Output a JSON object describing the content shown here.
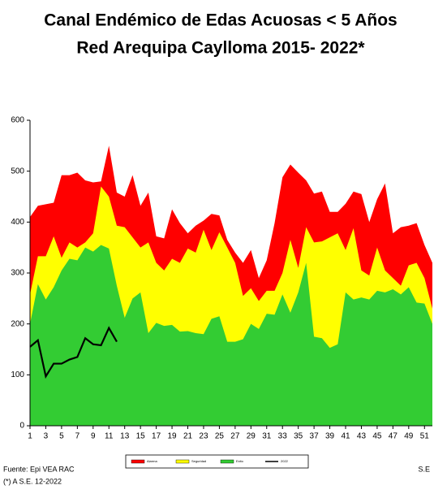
{
  "chart_data": {
    "type": "area",
    "title": "Canal Endémico de Edas Acuosas  < 5 Años",
    "subtitle": "Red Arequipa Caylloma 2015- 2022*",
    "x": [
      1,
      2,
      3,
      4,
      5,
      6,
      7,
      8,
      9,
      10,
      11,
      12,
      13,
      14,
      15,
      16,
      17,
      18,
      19,
      20,
      21,
      22,
      23,
      24,
      25,
      26,
      27,
      28,
      29,
      30,
      31,
      32,
      33,
      34,
      35,
      36,
      37,
      38,
      39,
      40,
      41,
      42,
      43,
      44,
      45,
      46,
      47,
      48,
      49,
      50,
      51,
      52
    ],
    "xlim": [
      1,
      52
    ],
    "xticks": [
      1,
      3,
      5,
      7,
      9,
      11,
      13,
      15,
      17,
      19,
      21,
      23,
      25,
      27,
      29,
      31,
      33,
      35,
      37,
      39,
      41,
      43,
      45,
      47,
      49,
      51
    ],
    "ylim": [
      0,
      600
    ],
    "yticks": [
      0,
      100,
      200,
      300,
      400,
      500,
      600
    ],
    "x_label": "S.E",
    "source": "Fuente: Epi VEA RAC",
    "note": "(*) A S.E.  12-2022",
    "series": [
      {
        "name": "Alarma",
        "color": "#ff0000",
        "kind": "area",
        "values": [
          410,
          432,
          435,
          438,
          492,
          492,
          497,
          482,
          478,
          480,
          550,
          458,
          450,
          492,
          432,
          458,
          372,
          368,
          425,
          398,
          378,
          393,
          403,
          416,
          413,
          365,
          340,
          320,
          345,
          290,
          325,
          398,
          488,
          513,
          497,
          482,
          456,
          460,
          420,
          420,
          436,
          460,
          455,
          400,
          445,
          476,
          378,
          390,
          393,
          398,
          355,
          320
        ]
      },
      {
        "name": "Seguridad",
        "color": "#ffff00",
        "kind": "area",
        "values": [
          258,
          333,
          333,
          372,
          330,
          360,
          350,
          360,
          378,
          470,
          450,
          393,
          390,
          370,
          350,
          360,
          320,
          305,
          328,
          320,
          348,
          340,
          385,
          345,
          380,
          350,
          320,
          255,
          270,
          245,
          265,
          265,
          300,
          365,
          310,
          390,
          360,
          362,
          370,
          378,
          345,
          388,
          305,
          295,
          350,
          305,
          290,
          275,
          315,
          320,
          290,
          230
        ]
      },
      {
        "name": "Exito",
        "color": "#33cc33",
        "kind": "area",
        "values": [
          200,
          278,
          248,
          272,
          305,
          328,
          325,
          350,
          342,
          355,
          348,
          275,
          212,
          250,
          262,
          182,
          202,
          196,
          198,
          185,
          186,
          182,
          180,
          210,
          215,
          165,
          165,
          170,
          200,
          190,
          220,
          218,
          258,
          222,
          262,
          320,
          175,
          172,
          153,
          160,
          262,
          248,
          252,
          248,
          265,
          262,
          268,
          258,
          272,
          242,
          240,
          200
        ]
      },
      {
        "name": "2022",
        "color": "#000000",
        "kind": "line",
        "values": [
          155,
          168,
          97,
          122,
          122,
          130,
          135,
          172,
          160,
          158,
          192,
          165,
          null,
          null,
          null,
          null,
          null,
          null,
          null,
          null,
          null,
          null,
          null,
          null,
          null,
          null,
          null,
          null,
          null,
          null,
          null,
          null,
          null,
          null,
          null,
          null,
          null,
          null,
          null,
          null,
          null,
          null,
          null,
          null,
          null,
          null,
          null,
          null,
          null,
          null,
          null,
          null
        ]
      }
    ]
  }
}
